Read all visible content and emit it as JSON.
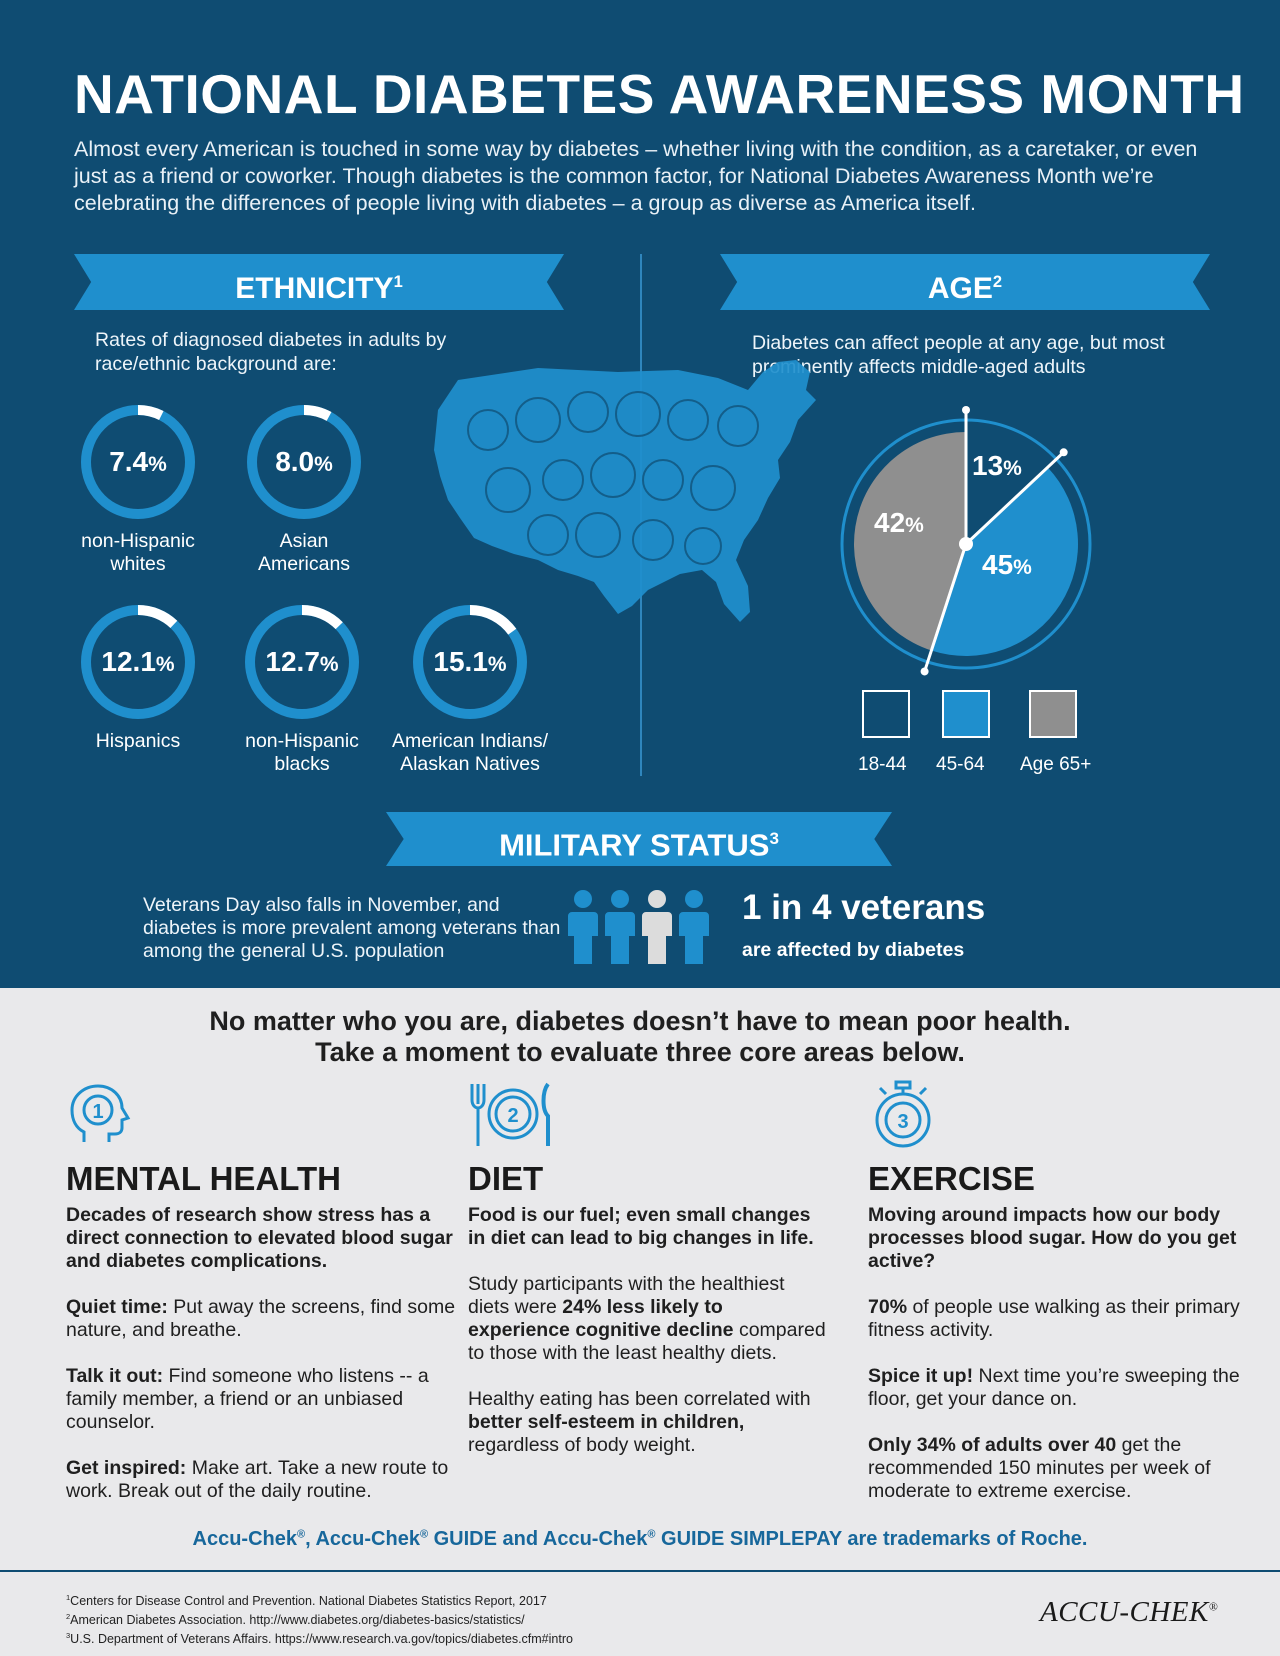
{
  "page": {
    "title": "NATIONAL DIABETES AWARENESS MONTH",
    "intro": "Almost every American is touched in some way by diabetes – whether living with the condition, as a caretaker, or even just as a friend or coworker. Though diabetes is the common factor, for National Diabetes Awareness Month we’re celebrating the differences of people living with diabetes – a group as diverse as America itself.",
    "colors": {
      "dark_blue": "#0f4c72",
      "accent_blue": "#1f8fcd",
      "gray": "#8f8f8f",
      "light_bg": "#e9e9eb"
    }
  },
  "ethnicity": {
    "heading": "ETHNICITY",
    "ref": "1",
    "description": "Rates of diagnosed diabetes in adults by race/ethnic background are:",
    "rates": [
      {
        "value": "7.4",
        "unit": "%",
        "label_1": "non-Hispanic",
        "label_2": "whites",
        "fraction": 0.074
      },
      {
        "value": "8.0",
        "unit": "%",
        "label_1": "Asian",
        "label_2": "Americans",
        "fraction": 0.08
      },
      {
        "value": "12.1",
        "unit": "%",
        "label_1": "Hispanics",
        "label_2": "",
        "fraction": 0.121
      },
      {
        "value": "12.7",
        "unit": "%",
        "label_1": "non-Hispanic",
        "label_2": "blacks",
        "fraction": 0.127
      },
      {
        "value": "15.1",
        "unit": "%",
        "label_1": "American Indians/",
        "label_2": "Alaskan Natives",
        "fraction": 0.151
      }
    ]
  },
  "age": {
    "heading": "AGE",
    "ref": "2",
    "description": "Diabetes can affect people at any age, but most prominently affects middle-aged adults",
    "slices": [
      {
        "label": "18-44",
        "value": 13,
        "display": "13",
        "unit": "%",
        "color": "#0f4c72"
      },
      {
        "label": "45-64",
        "value": 42,
        "display": "42",
        "unit": "%",
        "color": "#1f8fcd"
      },
      {
        "label": "Age 65+",
        "value": 45,
        "display": "45",
        "unit": "%",
        "color": "#8f8f8f"
      }
    ]
  },
  "military": {
    "heading": "MILITARY STATUS",
    "ref": "3",
    "description": "Veterans Day also falls in November, and diabetes is more prevalent among veterans than among the general U.S. population",
    "stat": "1 in 4 veterans",
    "stat_sub": "are affected by diabetes",
    "highlighted_person": 3,
    "people_total": 4
  },
  "core": {
    "headline_1": "No matter who you are, diabetes doesn’t have to mean poor health.",
    "headline_2": "Take a moment to evaluate three core areas below.",
    "mental": {
      "number": "1",
      "title": "MENTAL HEALTH",
      "lead": "Decades of research show stress has a direct connection to elevated blood sugar and diabetes complications.",
      "p1_bold": "Quiet time:",
      "p1_text": " Put away the screens, find some nature, and breathe.",
      "p2_bold": "Talk it out:",
      "p2_text": " Find someone who listens -- a family member, a friend or an unbiased counselor.",
      "p3_bold": "Get inspired:",
      "p3_text": " Make art. Take a new route to work. Break out of the daily routine."
    },
    "diet": {
      "number": "2",
      "title": "DIET",
      "lead": "Food is our fuel; even small changes in diet can lead to big changes in life.",
      "p1_a": "Study participants with the healthiest diets were ",
      "p1_bold": "24% less likely to experience cognitive decline",
      "p1_b": " compared to those with the least healthy diets.",
      "p2_a": "Healthy eating has been correlated with ",
      "p2_bold": "better self-esteem in children,",
      "p2_b": " regardless of body weight."
    },
    "exercise": {
      "number": "3",
      "title": "EXERCISE",
      "lead": "Moving around impacts how our body processes blood sugar. How do you get active?",
      "p1_bold": "70%",
      "p1_text": " of people use walking as their primary fitness activity.",
      "p2_bold": "Spice it up!",
      "p2_text": " Next time you’re sweeping the floor, get your dance on.",
      "p3_bold": "Only 34% of adults over 40",
      "p3_text": " get the recommended 150 minutes per week of moderate to extreme exercise."
    }
  },
  "footer": {
    "tm_1": "Accu-Chek",
    "tm_2": ", Accu-Chek",
    "tm_3": " GUIDE and Accu-Chek",
    "tm_4": " GUIDE SIMPLEPAY are trademarks of Roche.",
    "reg": "®",
    "ref_1": "Centers for Disease Control and Prevention. National Diabetes Statistics Report, 2017",
    "ref_2": "American Diabetes Association. http://www.diabetes.org/diabetes-basics/statistics/",
    "ref_3": "U.S. Department of Veterans Affairs. https://www.research.va.gov/topics/diabetes.cfm#intro",
    "logo": "ACCU-CHEK"
  }
}
